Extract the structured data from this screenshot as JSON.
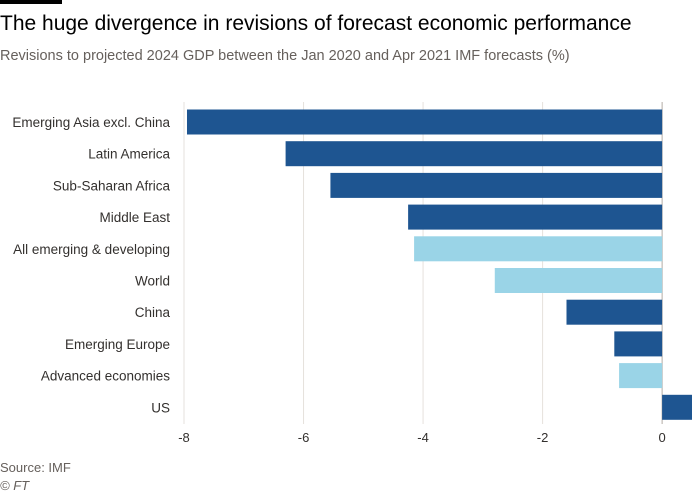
{
  "title": "The huge divergence in revisions of forecast economic performance",
  "subtitle": "Revisions to projected 2024 GDP between the Jan 2020 and Apr 2021 IMF forecasts (%)",
  "source": "Source: IMF",
  "copyright": "© FT",
  "colors": {
    "dark": "#1e5591",
    "light": "#9ad4e7",
    "grid": "#e6e1dc",
    "axis_text": "#33302e",
    "zero_line": "#b3aca5"
  },
  "chart_data": {
    "type": "bar",
    "orientation": "horizontal",
    "title": "The huge divergence in revisions of forecast economic performance",
    "subtitle": "Revisions to projected 2024 GDP between the Jan 2020 and Apr 2021 IMF forecasts (%)",
    "xlim": [
      -8,
      0.5
    ],
    "xticks": [
      -8,
      -6,
      -4,
      -2,
      0
    ],
    "xtick_labels": [
      "-8",
      "-6",
      "-4",
      "-2",
      "0"
    ],
    "grid": true,
    "categories": [
      "Emerging Asia excl. China",
      "Latin America",
      "Sub-Saharan Africa",
      "Middle East",
      "All emerging & developing",
      "World",
      "China",
      "Emerging Europe",
      "Advanced economies",
      "US"
    ],
    "values": [
      -7.95,
      -6.3,
      -5.55,
      -4.25,
      -4.15,
      -2.8,
      -1.6,
      -0.8,
      -0.72,
      0.5
    ],
    "highlight": [
      "dark",
      "dark",
      "dark",
      "dark",
      "light",
      "light",
      "dark",
      "dark",
      "light",
      "dark"
    ]
  }
}
